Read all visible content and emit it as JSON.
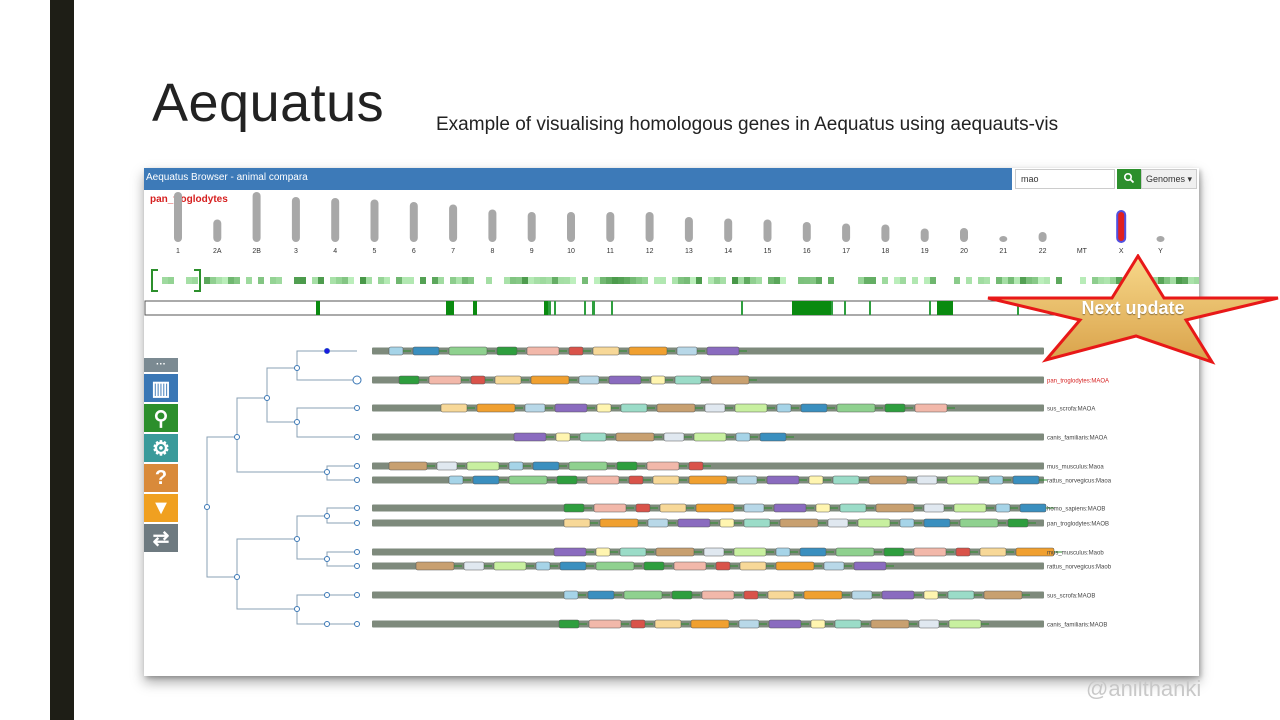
{
  "slide": {
    "title": "Aequatus",
    "subtitle": "Example of visualising homologous genes in Aequatus using aequauts-vis",
    "watermark": "@anilthanki",
    "callout": "Next update"
  },
  "browser": {
    "title": "Aequatus Browser - animal compara",
    "search_value": "mao",
    "genomes_label": "Genomes ▾",
    "species": "pan_troglodytes",
    "chromosomes": [
      {
        "label": "1",
        "size": 1.0
      },
      {
        "label": "2A",
        "size": 0.45
      },
      {
        "label": "2B",
        "size": 1.0
      },
      {
        "label": "3",
        "size": 0.9
      },
      {
        "label": "4",
        "size": 0.88
      },
      {
        "label": "5",
        "size": 0.85
      },
      {
        "label": "6",
        "size": 0.8
      },
      {
        "label": "7",
        "size": 0.75
      },
      {
        "label": "8",
        "size": 0.65
      },
      {
        "label": "9",
        "size": 0.6
      },
      {
        "label": "10",
        "size": 0.6
      },
      {
        "label": "11",
        "size": 0.6
      },
      {
        "label": "12",
        "size": 0.6
      },
      {
        "label": "13",
        "size": 0.5
      },
      {
        "label": "14",
        "size": 0.47
      },
      {
        "label": "15",
        "size": 0.45
      },
      {
        "label": "16",
        "size": 0.4
      },
      {
        "label": "17",
        "size": 0.37
      },
      {
        "label": "18",
        "size": 0.35
      },
      {
        "label": "19",
        "size": 0.27
      },
      {
        "label": "20",
        "size": 0.28
      },
      {
        "label": "21",
        "size": 0.12
      },
      {
        "label": "22",
        "size": 0.2
      },
      {
        "label": "MT",
        "size": 0
      },
      {
        "label": "X",
        "size": 0.62,
        "selected": true
      },
      {
        "label": "Y",
        "size": 0.1
      }
    ],
    "tools": [
      {
        "name": "more-icon",
        "color": "#7b8a92",
        "symbol": "···"
      },
      {
        "name": "bar-chart-icon",
        "color": "#3a77b5",
        "symbol": "▥"
      },
      {
        "name": "search-icon",
        "color": "#2c8f2c",
        "symbol": "⚲"
      },
      {
        "name": "gears-icon",
        "color": "#3a9a9a",
        "symbol": "⚙"
      },
      {
        "name": "help-icon",
        "color": "#d98a3a",
        "symbol": "?"
      },
      {
        "name": "filter-icon",
        "color": "#f0a020",
        "symbol": "▼"
      },
      {
        "name": "swap-icon",
        "color": "#6e7a80",
        "symbol": "⇄"
      }
    ],
    "genes": [
      {
        "label": "",
        "highlight": false
      },
      {
        "label": "pan_troglodytes:MAOA",
        "highlight": true
      },
      {
        "label": "sus_scrofa:MAOA",
        "highlight": false
      },
      {
        "label": "canis_familiaris:MAOA",
        "highlight": false
      },
      {
        "label": "mus_musculus:Maoa",
        "highlight": false
      },
      {
        "label": "rattus_norvegicus:Maoa",
        "highlight": false
      },
      {
        "label": "homo_sapiens:MAOB",
        "highlight": false
      },
      {
        "label": "pan_troglodytes:MAOB",
        "highlight": false
      },
      {
        "label": "mus_musculus:Maob",
        "highlight": false
      },
      {
        "label": "rattus_norvegicus:Maob",
        "highlight": false
      },
      {
        "label": "sus_scrofa:MAOB",
        "highlight": false
      },
      {
        "label": "canis_familiaris:MAOB",
        "highlight": false
      }
    ],
    "exon_palette": [
      "#a6d4e8",
      "#3a8fbf",
      "#8fd18f",
      "#2e9e3e",
      "#f2b8aa",
      "#d9534a",
      "#f7d898",
      "#f0a030",
      "#b8d8e8",
      "#8a6bbf",
      "#fff5b0",
      "#9bdcc8",
      "#c8a070",
      "#e0e8f0",
      "#c8f0a0"
    ]
  }
}
